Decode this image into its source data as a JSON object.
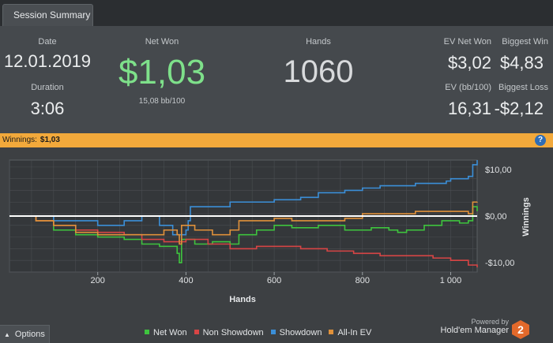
{
  "tab": {
    "label": "Session Summary"
  },
  "summary": {
    "date_label": "Date",
    "date_value": "12.01.2019",
    "duration_label": "Duration",
    "duration_value": "3:06",
    "net_won_label": "Net Won",
    "net_won_value": "$1,03",
    "net_won_sub": "15,08 bb/100",
    "hands_label": "Hands",
    "hands_value": "1060",
    "ev_net_won_label": "EV Net Won",
    "ev_net_won_value": "$3,02",
    "biggest_win_label": "Biggest Win",
    "biggest_win_value": "$4,83",
    "ev_bb_label": "EV (bb/100)",
    "ev_bb_value": "16,31",
    "biggest_loss_label": "Biggest Loss",
    "biggest_loss_value": "-$2,12",
    "net_won_color": "#7ee08a"
  },
  "winbar": {
    "label": "Winnings:",
    "value": "$1,03",
    "help_icon": "question-icon",
    "help_text": "?"
  },
  "footer": {
    "options_label": "Options",
    "powered_by": "Powered by",
    "product": "Hold'em Manager",
    "logo_text": "2"
  },
  "chart_data": {
    "type": "line",
    "xlabel": "Hands",
    "ylabel": "Winnings",
    "xlim": [
      0,
      1060
    ],
    "ylim": [
      -12,
      12
    ],
    "x_ticks": [
      200,
      400,
      600,
      800,
      1000
    ],
    "x_tick_labels": [
      "200",
      "400",
      "600",
      "800",
      "1 000"
    ],
    "y_ticks": [
      10,
      0,
      -10
    ],
    "y_tick_labels": [
      "$10,00",
      "$0,00",
      "-$10,00"
    ],
    "grid": true,
    "legend": "bottom",
    "series": [
      {
        "name": "Net Won",
        "color": "#3ec43e",
        "x": [
          0,
          60,
          100,
          150,
          200,
          260,
          300,
          340,
          380,
          385,
          390,
          420,
          460,
          500,
          520,
          560,
          600,
          640,
          700,
          760,
          820,
          860,
          880,
          900,
          940,
          980,
          1020,
          1040,
          1050,
          1060
        ],
        "y": [
          0,
          -1,
          -3,
          -4,
          -4.5,
          -5,
          -6,
          -6.5,
          -8,
          -10,
          -5,
          -6,
          -5.5,
          -6,
          -4,
          -3,
          -2,
          -2.5,
          -2,
          -3,
          -2.5,
          -3,
          -3.5,
          -3,
          -2,
          -1,
          -1.5,
          -1,
          2,
          1.03
        ]
      },
      {
        "name": "Non Showdown",
        "color": "#d84545",
        "x": [
          0,
          60,
          100,
          150,
          200,
          260,
          300,
          350,
          400,
          450,
          500,
          560,
          600,
          660,
          720,
          780,
          840,
          900,
          960,
          1000,
          1040,
          1060
        ],
        "y": [
          0,
          -1,
          -2,
          -3,
          -3.5,
          -4,
          -5,
          -5.5,
          -5,
          -6,
          -7,
          -6.5,
          -6.5,
          -7,
          -7.5,
          -8,
          -8.5,
          -8.5,
          -9,
          -9.5,
          -10.5,
          -11
        ]
      },
      {
        "name": "Showdown",
        "color": "#3b8fd8",
        "x": [
          0,
          100,
          150,
          200,
          260,
          300,
          340,
          370,
          400,
          405,
          410,
          450,
          500,
          560,
          600,
          660,
          700,
          760,
          800,
          840,
          880,
          920,
          960,
          990,
          1000,
          1020,
          1040,
          1050,
          1060
        ],
        "y": [
          0,
          -1,
          -1,
          -2,
          -1,
          0,
          -2,
          -4,
          -3,
          -1,
          2,
          2,
          3,
          3,
          3.5,
          4,
          5,
          5.5,
          6,
          6.5,
          6.5,
          7,
          7,
          7.5,
          8,
          8,
          8.5,
          11,
          12
        ]
      },
      {
        "name": "All-In EV",
        "color": "#e0913a",
        "x": [
          0,
          60,
          100,
          150,
          200,
          260,
          300,
          350,
          380,
          385,
          390,
          420,
          460,
          500,
          520,
          560,
          600,
          640,
          700,
          760,
          800,
          840,
          880,
          920,
          960,
          1000,
          1040,
          1050,
          1060
        ],
        "y": [
          0,
          -1,
          -2,
          -3.5,
          -4,
          -4,
          -4,
          -3,
          -4,
          -6,
          -2,
          -3,
          -4,
          -3,
          -1,
          -1,
          -0.5,
          -1,
          -1,
          -0.5,
          0.5,
          0.5,
          0.5,
          1,
          1,
          1,
          0.5,
          3,
          3.02
        ]
      }
    ]
  }
}
